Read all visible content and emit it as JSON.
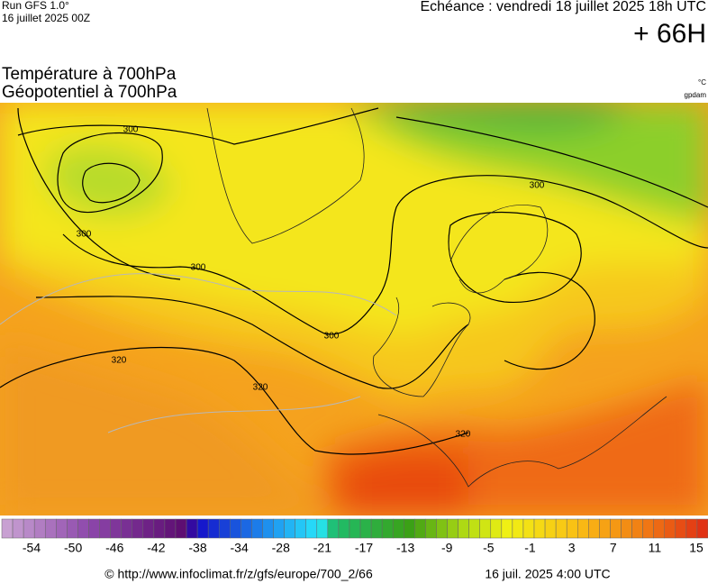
{
  "header": {
    "run": "Run GFS 1.0°",
    "run_date": "16 juillet 2025 00Z",
    "echeance": "Echéance : vendredi 18 juillet 2025 18h UTC",
    "lead": "+ 66H"
  },
  "titles": {
    "line1": "Température à 700hPa",
    "line2": "Géopotentiel à 700hPa",
    "unit_temp": "°C",
    "unit_geo": "gpdam"
  },
  "contour_labels": [
    "300",
    "300",
    "300",
    "300",
    "300",
    "320",
    "320",
    "320"
  ],
  "scale": {
    "labels": [
      -54,
      -50,
      -46,
      -42,
      -38,
      -34,
      -28,
      -21,
      -17,
      -13,
      -9,
      -5,
      -1,
      3,
      7,
      11,
      15
    ]
  },
  "footer": {
    "url": "© http://www.infoclimat.fr/z/gfs/europe/700_2/66",
    "timestamp": "16 juil. 2025  4:00 UTC"
  }
}
